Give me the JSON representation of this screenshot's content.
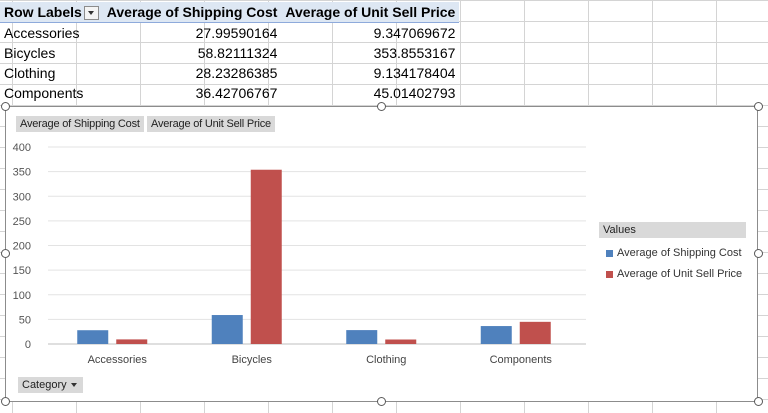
{
  "pivot": {
    "headers": [
      "Row Labels",
      "Average of Shipping Cost",
      "Average of Unit Sell Price"
    ],
    "rows": [
      {
        "label": "Accessories",
        "shipping": "27.99590164",
        "price": "9.347069672"
      },
      {
        "label": "Bicycles",
        "shipping": "58.82111324",
        "price": "353.8553167"
      },
      {
        "label": "Clothing",
        "shipping": "28.23286385",
        "price": "9.134178404"
      },
      {
        "label": "Components",
        "shipping": "36.42706767",
        "price": "45.01402793"
      }
    ]
  },
  "chart": {
    "field_buttons": [
      "Average of Shipping Cost",
      "Average of Unit Sell Price"
    ],
    "axis_field": "Category",
    "legend_title": "Values"
  },
  "chart_data": {
    "type": "bar",
    "categories": [
      "Accessories",
      "Bicycles",
      "Clothing",
      "Components"
    ],
    "series": [
      {
        "name": "Average of Shipping Cost",
        "values": [
          27.99590164,
          58.82111324,
          28.23286385,
          36.42706767
        ],
        "color": "#4f81bd"
      },
      {
        "name": "Average of Unit Sell Price",
        "values": [
          9.347069672,
          353.8553167,
          9.134178404,
          45.01402793
        ],
        "color": "#c0504d"
      }
    ],
    "ylim": [
      0,
      400
    ],
    "yticks": [
      "0",
      "50",
      "100",
      "150",
      "200",
      "250",
      "300",
      "350",
      "400"
    ],
    "grid": true,
    "legend": "right"
  }
}
